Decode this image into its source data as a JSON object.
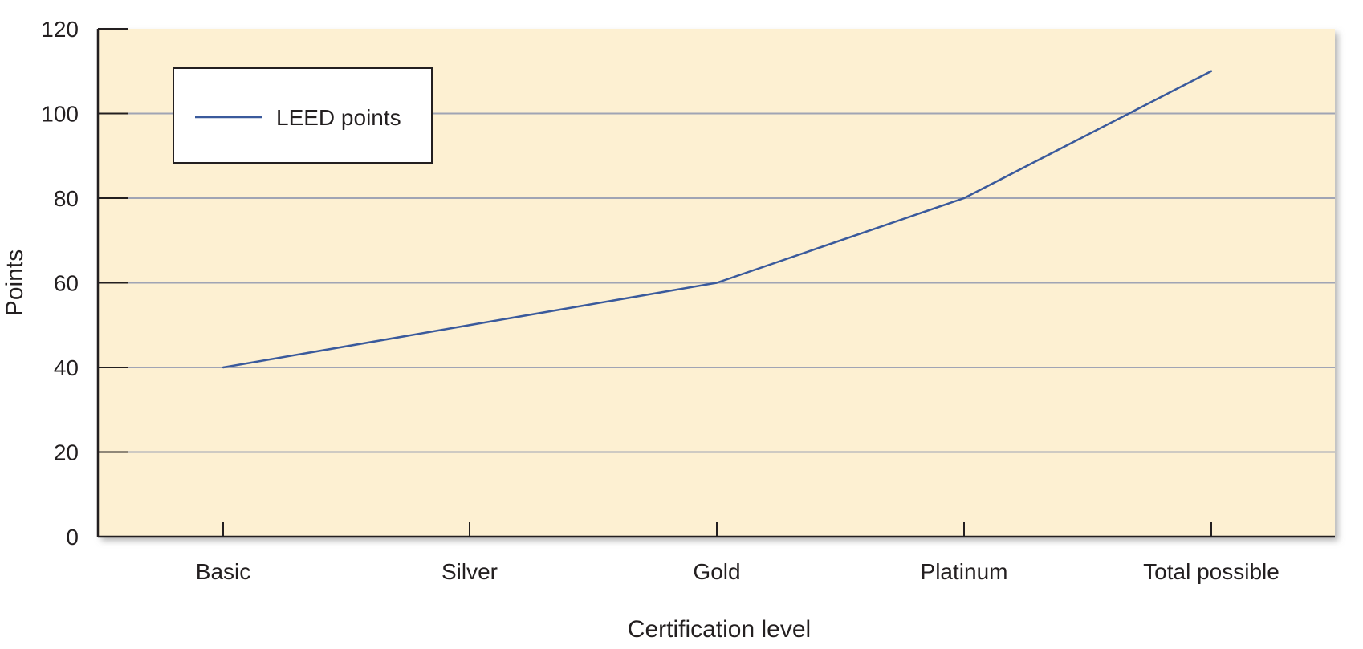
{
  "chart_data": {
    "type": "line",
    "title": "",
    "xlabel": "Certification level",
    "ylabel": "Points",
    "categories": [
      "Basic",
      "Silver",
      "Gold",
      "Platinum",
      "Total possible"
    ],
    "series": [
      {
        "name": "LEED points",
        "values": [
          40,
          50,
          60,
          80,
          110
        ],
        "color": "#3a5a9c"
      }
    ],
    "ylim": [
      0,
      120
    ],
    "yticks": [
      0,
      20,
      40,
      60,
      80,
      100,
      120
    ],
    "ytick_labels": [
      "0",
      "20",
      "40",
      "60",
      "80",
      "100",
      "120"
    ],
    "grid": true,
    "legend_position": "top-left"
  },
  "colors": {
    "plot_background": "#fdf0d2",
    "gridline": "#a0a4b4",
    "axis": "#231f20",
    "series_line": "#3a5a9c",
    "shadow": "#8a8a8a"
  }
}
